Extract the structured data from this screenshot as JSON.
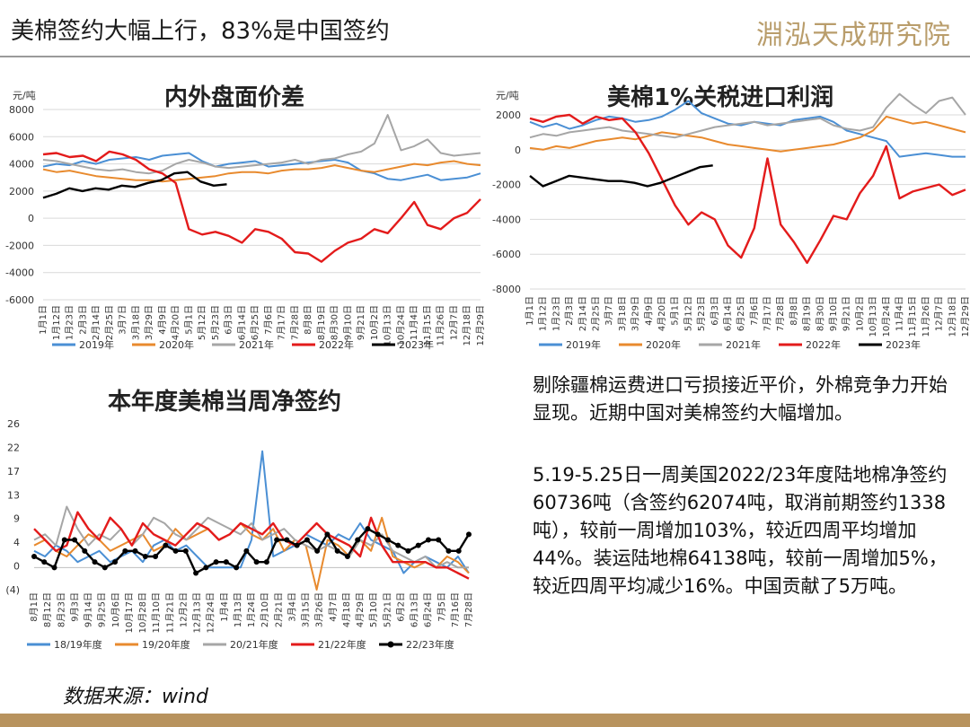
{
  "header": {
    "title": "美棉签约大幅上行，83%是中国签约",
    "brand": "淵泓天成研究院"
  },
  "colors": {
    "2019": "#4a8fd4",
    "2020": "#e88a2e",
    "2021": "#a6a6a6",
    "2022": "#e31b1b",
    "2023": "#000000",
    "brand": "#b99d6b",
    "footer": "#b8935e"
  },
  "chart_data": [
    {
      "id": "chart1",
      "type": "line",
      "title": "内外盘面价差",
      "unit": "元/吨",
      "ylim": [
        -6000,
        8000
      ],
      "yticks": [
        "8000",
        "6000",
        "4000",
        "2000",
        "0",
        "-2000",
        "-4000",
        "-6000"
      ],
      "xticks": [
        "1月1日",
        "1月12日",
        "1月23日",
        "2月3日",
        "2月14日",
        "2月25日",
        "3月7日",
        "3月18日",
        "3月29日",
        "4月9日",
        "4月20日",
        "5月1日",
        "5月12日",
        "5月23日",
        "6月3日",
        "6月14日",
        "6月25日",
        "7月6日",
        "7月17日",
        "7月28日",
        "8月8日",
        "8月19日",
        "8月30日",
        "9月10日",
        "9月21日",
        "10月2日",
        "10月13日",
        "10月24日",
        "11月4日",
        "11月15日",
        "11月26日",
        "12月7日",
        "12月18日",
        "12月29日"
      ],
      "grid": true,
      "legend": "bottom",
      "series": [
        {
          "name": "2019年",
          "key": "2019",
          "values": [
            3800,
            4000,
            3900,
            4200,
            4000,
            4300,
            4400,
            4500,
            4300,
            4600,
            4700,
            4800,
            4200,
            3800,
            4000,
            4100,
            4200,
            3800,
            3900,
            4000,
            4100,
            4200,
            4300,
            4100,
            3500,
            3300,
            2900,
            2800,
            3000,
            3200,
            2800,
            2900,
            3000,
            3300
          ]
        },
        {
          "name": "2020年",
          "key": "2020",
          "values": [
            3600,
            3400,
            3500,
            3300,
            3100,
            3000,
            2900,
            2800,
            2800,
            2700,
            2800,
            2900,
            3000,
            3100,
            3300,
            3400,
            3400,
            3300,
            3500,
            3600,
            3600,
            3700,
            3900,
            3700,
            3500,
            3400,
            3600,
            3800,
            4000,
            3900,
            4100,
            4200,
            4000,
            3900
          ]
        },
        {
          "name": "2021年",
          "key": "2021",
          "values": [
            4300,
            4200,
            4000,
            3800,
            3600,
            3500,
            3600,
            3400,
            3300,
            3500,
            4000,
            4300,
            4100,
            3800,
            3700,
            3800,
            3900,
            4000,
            4100,
            4300,
            4000,
            4300,
            4400,
            4700,
            4900,
            5500,
            7600,
            5000,
            5300,
            5800,
            4800,
            4600,
            4700,
            4800
          ]
        },
        {
          "name": "2022年",
          "key": "2022",
          "values": [
            4700,
            4800,
            4500,
            4600,
            4200,
            4900,
            4700,
            4300,
            3600,
            3300,
            2600,
            -800,
            -1200,
            -1000,
            -1300,
            -1800,
            -800,
            -1000,
            -1500,
            -2500,
            -2600,
            -3200,
            -2400,
            -1800,
            -1500,
            -800,
            -1100,
            0,
            1200,
            -500,
            -800,
            0,
            400,
            1400
          ]
        },
        {
          "name": "2023年",
          "key": "2023",
          "values": [
            1500,
            1800,
            2200,
            2000,
            2200,
            2100,
            2400,
            2300,
            2600,
            2800,
            3300,
            3400,
            2700,
            2400,
            2500
          ]
        }
      ]
    },
    {
      "id": "chart2",
      "type": "line",
      "title": "美棉1%关税进口利润",
      "unit": "元/吨",
      "ylim": [
        -8000,
        2000
      ],
      "yticks": [
        "2000",
        "0",
        "-2000",
        "-4000",
        "-6000",
        "-8000"
      ],
      "xticks": [
        "1月1日",
        "1月12日",
        "1月23日",
        "2月3日",
        "2月14日",
        "2月25日",
        "3月7日",
        "3月18日",
        "3月29日",
        "4月9日",
        "4月20日",
        "5月1日",
        "5月12日",
        "5月23日",
        "6月3日",
        "6月14日",
        "6月25日",
        "7月6日",
        "7月17日",
        "7月28日",
        "8月8日",
        "8月19日",
        "8月30日",
        "9月10日",
        "9月21日",
        "10月2日",
        "10月13日",
        "10月24日",
        "11月4日",
        "11月15日",
        "11月26日",
        "12月7日",
        "12月18日",
        "12月29日"
      ],
      "grid": true,
      "legend": "bottom",
      "series": [
        {
          "name": "2019年",
          "key": "2019",
          "values": [
            1600,
            1300,
            1500,
            1200,
            1400,
            1700,
            1900,
            1800,
            1600,
            1700,
            1900,
            2300,
            2800,
            2100,
            1800,
            1500,
            1400,
            1600,
            1500,
            1400,
            1700,
            1800,
            1900,
            1600,
            1100,
            900,
            700,
            500,
            -400,
            -300,
            -200,
            -300,
            -400,
            -400
          ]
        },
        {
          "name": "2020年",
          "key": "2020",
          "values": [
            100,
            0,
            200,
            100,
            300,
            500,
            600,
            700,
            600,
            800,
            1000,
            900,
            800,
            700,
            500,
            300,
            200,
            100,
            0,
            -100,
            0,
            100,
            200,
            300,
            500,
            700,
            1100,
            1900,
            1700,
            1500,
            1600,
            1400,
            1200,
            1000
          ]
        },
        {
          "name": "2021年",
          "key": "2021",
          "values": [
            700,
            900,
            800,
            1000,
            1100,
            1200,
            1300,
            1100,
            1000,
            900,
            800,
            700,
            900,
            1100,
            1300,
            1400,
            1500,
            1600,
            1400,
            1500,
            1600,
            1700,
            1800,
            1400,
            1200,
            1100,
            1300,
            2400,
            3200,
            2600,
            2100,
            2800,
            3000,
            2000
          ]
        },
        {
          "name": "2022年",
          "key": "2022",
          "values": [
            1800,
            1600,
            1900,
            2000,
            1500,
            1900,
            1700,
            1800,
            1000,
            -200,
            -1700,
            -3200,
            -4300,
            -3600,
            -4000,
            -5500,
            -6200,
            -4500,
            -500,
            -4300,
            -5300,
            -6500,
            -5200,
            -3800,
            -4000,
            -2500,
            -1500,
            200,
            -2800,
            -2400,
            -2200,
            -2000,
            -2600,
            -2300
          ]
        },
        {
          "name": "2023年",
          "key": "2023",
          "values": [
            -1500,
            -2100,
            -1800,
            -1500,
            -1600,
            -1700,
            -1800,
            -1800,
            -1900,
            -2100,
            -1900,
            -1600,
            -1300,
            -1000,
            -900
          ]
        }
      ]
    },
    {
      "id": "chart3",
      "type": "line",
      "title": "本年度美棉当周净签约",
      "unit": "",
      "ylim": [
        -4,
        26
      ],
      "yticks": [
        "26",
        "22",
        "17",
        "13",
        "9",
        "4",
        "0",
        "(4)"
      ],
      "xticks": [
        "8月1日",
        "8月12日",
        "8月23日",
        "9月3日",
        "9月14日",
        "9月25日",
        "10月6日",
        "10月17日",
        "10月28日",
        "11月10日",
        "11月21日",
        "12月2日",
        "12月13日",
        "12月24日",
        "1月4日",
        "1月13日",
        "1月24日",
        "2月10日",
        "2月21日",
        "3月4日",
        "3月15日",
        "3月26日",
        "4月7日",
        "4月18日",
        "4月29日",
        "5月10日",
        "5月21日",
        "6月2日",
        "6月13日",
        "6月24日",
        "7月5日",
        "7月16日",
        "7月28日"
      ],
      "grid": false,
      "legend": "bottom",
      "series": [
        {
          "name": "18/19年度",
          "key": "2019",
          "values": [
            3,
            2,
            4,
            3,
            1,
            2,
            3,
            1,
            2,
            3,
            1,
            4,
            5,
            3,
            4,
            2,
            0,
            0,
            0,
            0,
            5,
            21,
            2,
            3,
            4,
            6,
            5,
            4,
            6,
            5,
            8,
            5,
            4,
            3,
            -1,
            1,
            2,
            1,
            0,
            2,
            -1
          ]
        },
        {
          "name": "19/20年度",
          "key": "2020",
          "values": [
            4,
            5,
            3,
            2,
            4,
            6,
            5,
            3,
            4,
            5,
            6,
            3,
            4,
            7,
            5,
            6,
            7,
            5,
            6,
            8,
            6,
            5,
            7,
            3,
            5,
            4,
            -4,
            5,
            4,
            2,
            5,
            3,
            9,
            2,
            1,
            0,
            1,
            0,
            2,
            1,
            -1
          ]
        },
        {
          "name": "20/21年度",
          "key": "2021",
          "values": [
            5,
            6,
            4,
            11,
            7,
            4,
            6,
            5,
            7,
            4,
            6,
            9,
            8,
            6,
            5,
            7,
            9,
            8,
            7,
            6,
            8,
            5,
            6,
            7,
            5,
            4,
            3,
            4,
            3,
            2,
            5,
            4,
            6,
            3,
            2,
            1,
            2,
            0,
            1,
            0,
            0
          ]
        },
        {
          "name": "21/22年度",
          "key": "2022",
          "values": [
            7,
            5,
            3,
            4,
            10,
            7,
            5,
            9,
            7,
            4,
            8,
            6,
            5,
            4,
            6,
            8,
            7,
            5,
            6,
            8,
            7,
            6,
            8,
            5,
            4,
            6,
            8,
            6,
            5,
            4,
            2,
            9,
            4,
            1,
            1,
            1,
            1,
            0,
            0,
            -1,
            -2
          ]
        },
        {
          "name": "22/23年度",
          "key": "2023",
          "markers": true,
          "values": [
            2,
            1,
            0,
            5,
            5,
            3,
            1,
            0,
            1,
            3,
            3,
            2,
            2,
            4,
            3,
            3,
            -1,
            0,
            1,
            1,
            0,
            3,
            1,
            1,
            5,
            5,
            4,
            5,
            3,
            6,
            3,
            2,
            5,
            7,
            6,
            5,
            4,
            3,
            4,
            5,
            5,
            3,
            3,
            6
          ]
        }
      ]
    }
  ],
  "text": {
    "para1": "剔除疆棉运费进口亏损接近平价，外棉竞争力开始显现。近期中国对美棉签约大幅增加。",
    "para2": "5.19-5.25日一周美国2022/23年度陆地棉净签约60736吨（含签约62074吨，取消前期签约1338吨），较前一周增加103%，较近四周平均增加44%。装运陆地棉64138吨，较前一周增加5%，较近四周平均减少16%。中国贡献了5万吨。"
  },
  "source": "数据来源：wind"
}
